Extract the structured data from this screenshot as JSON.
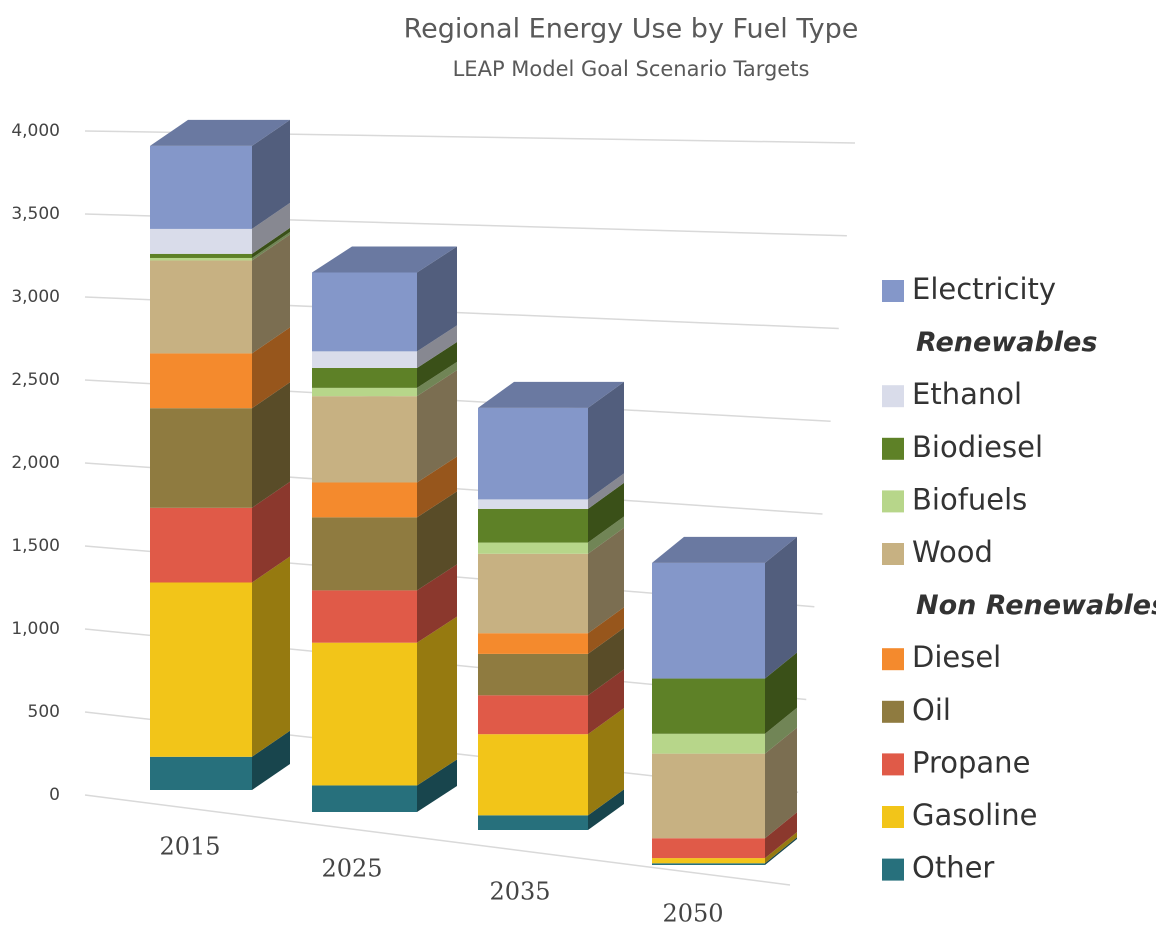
{
  "chart_data": {
    "type": "bar3d_stacked",
    "title": "Regional Energy Use by Fuel Type",
    "subtitle": "LEAP Model Goal Scenario Targets",
    "categories": [
      "2015",
      "2025",
      "2035",
      "2050"
    ],
    "series": [
      {
        "name": "Electricity",
        "color": "#8497c9",
        "values": [
          500,
          475,
          530,
          670
        ]
      },
      {
        "name": "Ethanol",
        "color": "#d9dcea",
        "values": [
          150,
          100,
          55,
          0
        ]
      },
      {
        "name": "Biodiesel",
        "color": "#5e8127",
        "values": [
          25,
          120,
          195,
          320
        ]
      },
      {
        "name": "Biofuels",
        "color": "#b7d68a",
        "values": [
          15,
          50,
          65,
          115
        ]
      },
      {
        "name": "Wood",
        "color": "#c7b182",
        "values": [
          560,
          520,
          460,
          490
        ]
      },
      {
        "name": "Diesel",
        "color": "#f48a2d",
        "values": [
          330,
          210,
          120,
          0
        ]
      },
      {
        "name": "Oil",
        "color": "#8f7b40",
        "values": [
          600,
          440,
          240,
          0
        ]
      },
      {
        "name": "Propane",
        "color": "#e05a48",
        "values": [
          450,
          315,
          225,
          115
        ]
      },
      {
        "name": "Gasoline",
        "color": "#f2c519",
        "values": [
          1050,
          860,
          470,
          30
        ]
      },
      {
        "name": "Other",
        "color": "#27707c",
        "values": [
          200,
          160,
          85,
          10
        ]
      }
    ],
    "legend_groups": [
      {
        "name": "Renewables",
        "members": [
          1,
          2,
          3,
          4
        ]
      },
      {
        "name": "Non Renewables",
        "members": [
          5,
          6,
          7,
          8,
          9
        ]
      }
    ],
    "ylim": [
      0,
      4000
    ],
    "yticks": [
      0,
      500,
      {
        "value": 1000,
        "label": "1,000"
      },
      {
        "value": 1500,
        "label": "1,500"
      },
      {
        "value": 2000,
        "label": "2,000"
      },
      {
        "value": 2500,
        "label": "2,500"
      },
      {
        "value": 3000,
        "label": "3,000"
      },
      {
        "value": 3500,
        "label": "3,500"
      },
      {
        "value": 4000,
        "label": "4,000"
      }
    ],
    "grid": true,
    "legend": "right"
  }
}
